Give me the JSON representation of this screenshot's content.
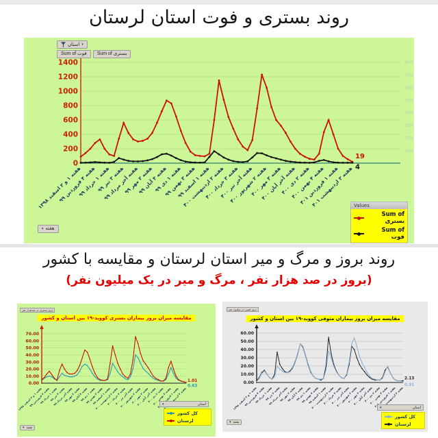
{
  "page": {
    "title1": "روند بستری و فوت استان لرستان",
    "title2": "روند بروز و مرگ و میر استان لرستان و مقایسه با کشور",
    "subtitle2": "(بروز در صد هزار نفر ، مرگ و میر در یک میلیون نفر)"
  },
  "main_chart": {
    "filter_label": "استان",
    "field_buttons": [
      "Sum of فوت",
      "Sum of بستری"
    ],
    "week_button": "هفته",
    "legend_header": "Values",
    "legend_items": [
      "Sum of بستری",
      "Sum of فوت"
    ]
  },
  "left_chart": {
    "field_label": "بروز بستری در صدهزار نفر",
    "title": "مقایسه میزان بروز بیماران بستری کووید-۱۹ بین استان و کشور",
    "filter_label": "استان",
    "week_button": "هفته",
    "legend_items": [
      "کل کشور",
      "لرستان"
    ]
  },
  "right_chart": {
    "field_label": "بروز فوتی در میلیون نفر",
    "title": "مقایسه میزان بروز بیماران متوفی کووید-۱۹ بین استان و کشور",
    "filter_label": "استان",
    "week_button": "هفته",
    "legend_items": [
      "کل کشور",
      "لرستان"
    ]
  },
  "colors": {
    "hospitalized": "#cc1100",
    "deaths": "#111111",
    "country_left": "#2e9bb0",
    "lorestan_left": "#cc1100",
    "country_right": "#8ab2d6",
    "lorestan_right": "#222222",
    "chart_bg_green": "#ccf698",
    "legend_yellow": "#ffff00",
    "subtitle_red": "#e40000"
  },
  "chart_data": [
    {
      "id": "main",
      "type": "line",
      "title": "روند بستری و فوت استان لرستان",
      "legend_position": "bottom-right",
      "grid": true,
      "x_tick_labels": [
        "هفته ۱ و ۲ اسفند ۱۳۹۸",
        "هفته ۴ فروردین ۹۹",
        "هفته ۱ خرداد ۹۹",
        "هفته ۳ تیر ۹۹",
        "هفته آخر مرداد ۹۹",
        "هفته ۲ مهر ۹۹",
        "هفته ۴ آبان ۹۹",
        "هفته ۱ دی ۹۹",
        "هفته ۳ بهمن ۹۹",
        "هفته ۱ اسفند ۹۹",
        "هفته ۲ اردیبهشت ۴۰۰",
        "هفته ۳ خرداد ۴۰۰",
        "هفته آخر تیر ۴۰۰",
        "هفته ۲ شهریور ۴۰۰",
        "هفته ۳ مهر ۴۰۰",
        "هفته آخر آبان ۴۰۰",
        "هفته ۲ دی ۴۰۰",
        "هفته ۴ بهمن ۴۰۰",
        "هفته ۱ فروردین ۴۰۱",
        "هفته ۳ اردیبهشت ۴۰۱"
      ],
      "y_left": {
        "min": 0,
        "max": 1400,
        "ticks": [
          "0",
          "200",
          "400",
          "600",
          "800",
          "1000",
          "1200",
          "1400"
        ]
      },
      "y_right": {
        "min": 0,
        "max": 800,
        "ticks": [
          "100",
          "200",
          "300",
          "400",
          "500",
          "600",
          "700",
          "800"
        ]
      },
      "series": [
        {
          "key": "bastari",
          "name": "Sum of بستری",
          "color": "#cc1100",
          "axis": "left",
          "end_label": "19",
          "values": [
            90,
            140,
            200,
            280,
            330,
            200,
            120,
            100,
            340,
            560,
            420,
            330,
            300,
            310,
            340,
            420,
            560,
            720,
            870,
            830,
            650,
            450,
            280,
            160,
            110,
            100,
            95,
            130,
            600,
            1150,
            880,
            640,
            480,
            330,
            230,
            180,
            320,
            760,
            1230,
            1050,
            780,
            600,
            520,
            420,
            300,
            200,
            130,
            90,
            60,
            50,
            130,
            430,
            600,
            400,
            200,
            100,
            55,
            19
          ]
        },
        {
          "key": "fot",
          "name": "Sum of فوت",
          "color": "#111111",
          "axis": "right",
          "end_label": "4",
          "values": [
            3,
            4,
            6,
            9,
            6,
            4,
            3,
            10,
            40,
            28,
            18,
            14,
            14,
            16,
            22,
            32,
            48,
            70,
            75,
            60,
            40,
            24,
            12,
            7,
            5,
            4,
            6,
            50,
            95,
            70,
            45,
            28,
            16,
            10,
            8,
            14,
            45,
            80,
            78,
            62,
            48,
            38,
            28,
            18,
            12,
            8,
            5,
            4,
            3,
            6,
            18,
            25,
            14,
            7,
            4,
            3,
            3,
            4
          ]
        }
      ]
    },
    {
      "id": "left",
      "type": "line",
      "title": "مقایسه میزان بروز بیماران بستری کووید-۱۹ بین استان و کشور",
      "legend_position": "bottom-right",
      "grid": true,
      "x_tick_labels": [
        "هفته ۱ و ۲ اسفند ۱۳۹۸",
        "هفته ۴ فروردین ۹۹",
        "هفته ۱ خرداد ۹۹",
        "هفته ۳ تیر ۹۹",
        "هفته آخر مرداد ۹۹",
        "هفته ۲ مهر ۹۹",
        "هفته ۴ آبان ۹۹",
        "هفته ۱ دی ۹۹",
        "هفته ۳ بهمن ۹۹",
        "هفته ۱ اسفند ۹۹",
        "هفته ۲ اردیبهشت ۴۰۰",
        "هفته ۳ خرداد ۴۰۰",
        "هفته آخر تیر ۴۰۰",
        "هفته ۲ شهریور ۴۰۰",
        "هفته ۳ مهر ۴۰۰",
        "هفته آخر آبان ۴۰۰",
        "هفته ۲ دی ۴۰۰",
        "هفته ۴ بهمن ۴۰۰",
        "هفته ۱ فروردین ۴۰۱",
        "هفته ۳ اردیبهشت ۴۰۱"
      ],
      "y_left": {
        "min": 0,
        "max": 70,
        "ticks": [
          "0.00",
          "10.00",
          "20.00",
          "30.00",
          "40.00",
          "50.00",
          "60.00",
          "70.00"
        ]
      },
      "series": [
        {
          "key": "keshvar",
          "name": "کل کشور",
          "color": "#2e9bb0",
          "axis": "left",
          "end_label": "0.63",
          "values": [
            4,
            7,
            9,
            10,
            9,
            6,
            4,
            9,
            14,
            11,
            10,
            9,
            9,
            10,
            12,
            17,
            24,
            27,
            25,
            20,
            14,
            9,
            6,
            4,
            4,
            4,
            5,
            14,
            28,
            22,
            16,
            12,
            9,
            6,
            5,
            9,
            20,
            40,
            36,
            28,
            21,
            17,
            14,
            10,
            7,
            5,
            4,
            3,
            3,
            5,
            13,
            22,
            14,
            7,
            4,
            3,
            2,
            0.63
          ]
        },
        {
          "key": "lorestan",
          "name": "لرستان",
          "color": "#cc1100",
          "axis": "left",
          "end_label": "1.01",
          "values": [
            5,
            8,
            13,
            17,
            12,
            7,
            4,
            18,
            27,
            20,
            15,
            13,
            13,
            14,
            18,
            25,
            36,
            47,
            44,
            34,
            23,
            14,
            8,
            5,
            4,
            4,
            6,
            28,
            53,
            40,
            28,
            20,
            13,
            9,
            7,
            13,
            33,
            66,
            56,
            42,
            32,
            27,
            22,
            16,
            10,
            7,
            5,
            3,
            3,
            7,
            22,
            31,
            20,
            10,
            5,
            3,
            2,
            1.01
          ]
        }
      ]
    },
    {
      "id": "right",
      "type": "line",
      "title": "مقایسه میزان بروز بیماران متوفی کووید-۱۹ بین استان و کشور",
      "legend_position": "bottom-right",
      "grid": true,
      "x_tick_labels": [
        "هفته ۱ و ۲ اسفند ۱۳۹۸",
        "هفته ۴ فروردین ۹۹",
        "هفته ۱ خرداد ۹۹",
        "هفته ۳ تیر ۹۹",
        "هفته آخر مرداد ۹۹",
        "هفته ۲ مهر ۹۹",
        "هفته ۴ آبان ۹۹",
        "هفته ۱ دی ۹۹",
        "هفته ۳ بهمن ۹۹",
        "هفته ۱ اسفند ۹۹",
        "هفته ۲ اردیبهشت ۴۰۰",
        "هفته ۳ خرداد ۴۰۰",
        "هفته آخر تیر ۴۰۰",
        "هفته ۲ شهریور ۴۰۰",
        "هفته ۳ مهر ۴۰۰",
        "هفته آخر آبان ۴۰۰",
        "هفته ۲ دی ۴۰۰",
        "هفته ۴ بهمن ۴۰۰",
        "هفته ۱ فروردین ۴۰۱",
        "هفته ۳ اردیبهشت ۴۰۱"
      ],
      "y_left": {
        "min": 0,
        "max": 60,
        "ticks": [
          "0.00",
          "10.00",
          "20.00",
          "30.00",
          "40.00",
          "50.00",
          "60.00"
        ]
      },
      "series": [
        {
          "key": "lorestan",
          "name": "لرستان",
          "color": "#222222",
          "axis": "left",
          "end_label": "2.13",
          "values": [
            2,
            6,
            12,
            15,
            10,
            6,
            4,
            10,
            37,
            22,
            17,
            13,
            12,
            14,
            18,
            25,
            35,
            47,
            43,
            33,
            22,
            13,
            8,
            5,
            4,
            3,
            5,
            20,
            55,
            35,
            22,
            14,
            9,
            6,
            5,
            9,
            22,
            44,
            40,
            30,
            22,
            17,
            13,
            9,
            6,
            4,
            3,
            3,
            3,
            6,
            15,
            19,
            12,
            6,
            3,
            2,
            2,
            2.13
          ]
        },
        {
          "key": "keshvar",
          "name": "کل کشور",
          "color": "#8ab2d6",
          "axis": "left",
          "end_label": "0.91",
          "values": [
            1,
            5,
            11,
            14,
            10,
            6,
            4,
            7,
            20,
            16,
            14,
            12,
            12,
            13,
            17,
            24,
            34,
            47,
            44,
            34,
            23,
            14,
            8,
            5,
            4,
            4,
            5,
            15,
            38,
            30,
            20,
            13,
            9,
            6,
            5,
            10,
            25,
            47,
            54,
            44,
            32,
            24,
            18,
            12,
            8,
            5,
            4,
            3,
            3,
            5,
            13,
            20,
            12,
            6,
            3,
            2,
            2,
            0.91
          ]
        }
      ]
    }
  ]
}
